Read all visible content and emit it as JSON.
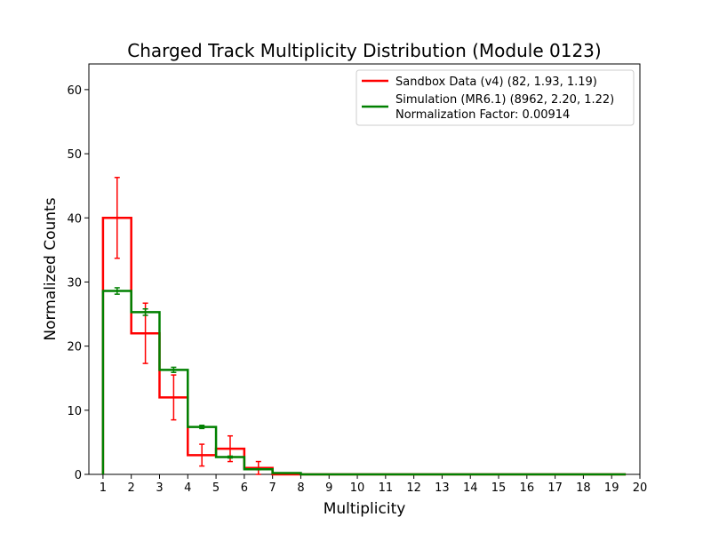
{
  "chart_data": {
    "type": "histogram",
    "title": "Charged Track Multiplicity Distribution (Module 0123)",
    "xlabel": "Multiplicity",
    "ylabel": "Normalized Counts",
    "xlim": [
      0.5,
      20
    ],
    "ylim": [
      0,
      64
    ],
    "x_ticks": [
      "1",
      "2",
      "3",
      "4",
      "5",
      "6",
      "7",
      "8",
      "9",
      "10",
      "11",
      "12",
      "13",
      "14",
      "15",
      "16",
      "17",
      "18",
      "19",
      "20"
    ],
    "y_ticks": [
      "0",
      "10",
      "20",
      "30",
      "40",
      "50",
      "60"
    ],
    "legend_position": "upper right",
    "bin_edges": [
      1,
      2,
      3,
      4,
      5,
      6,
      7,
      8,
      9,
      10,
      11,
      12,
      13,
      14,
      15,
      16,
      17,
      18,
      19,
      19.5
    ],
    "series": [
      {
        "name": "Sandbox Data (v4) (82, 1.93, 1.19)",
        "color": "#ff0000",
        "values": [
          40,
          22,
          12,
          3,
          4,
          1,
          0,
          0,
          0,
          0,
          0,
          0,
          0,
          0,
          0,
          0,
          0,
          0,
          0
        ],
        "errors": [
          6.3,
          4.7,
          3.5,
          1.7,
          2.0,
          1.0,
          0,
          0,
          0,
          0,
          0,
          0,
          0,
          0,
          0,
          0,
          0,
          0,
          0
        ]
      },
      {
        "name": "Simulation (MR6.1) (8962, 2.20, 1.22)",
        "color": "#008000",
        "values": [
          28.6,
          25.3,
          16.3,
          7.4,
          2.7,
          0.8,
          0.2,
          0,
          0,
          0,
          0,
          0,
          0,
          0,
          0,
          0,
          0,
          0,
          0
        ],
        "errors": [
          0.5,
          0.5,
          0.4,
          0.25,
          0.15,
          0.08,
          0.04,
          0,
          0,
          0,
          0,
          0,
          0,
          0,
          0,
          0,
          0,
          0,
          0
        ]
      }
    ],
    "legend_note": "Normalization Factor: 0.00914"
  }
}
